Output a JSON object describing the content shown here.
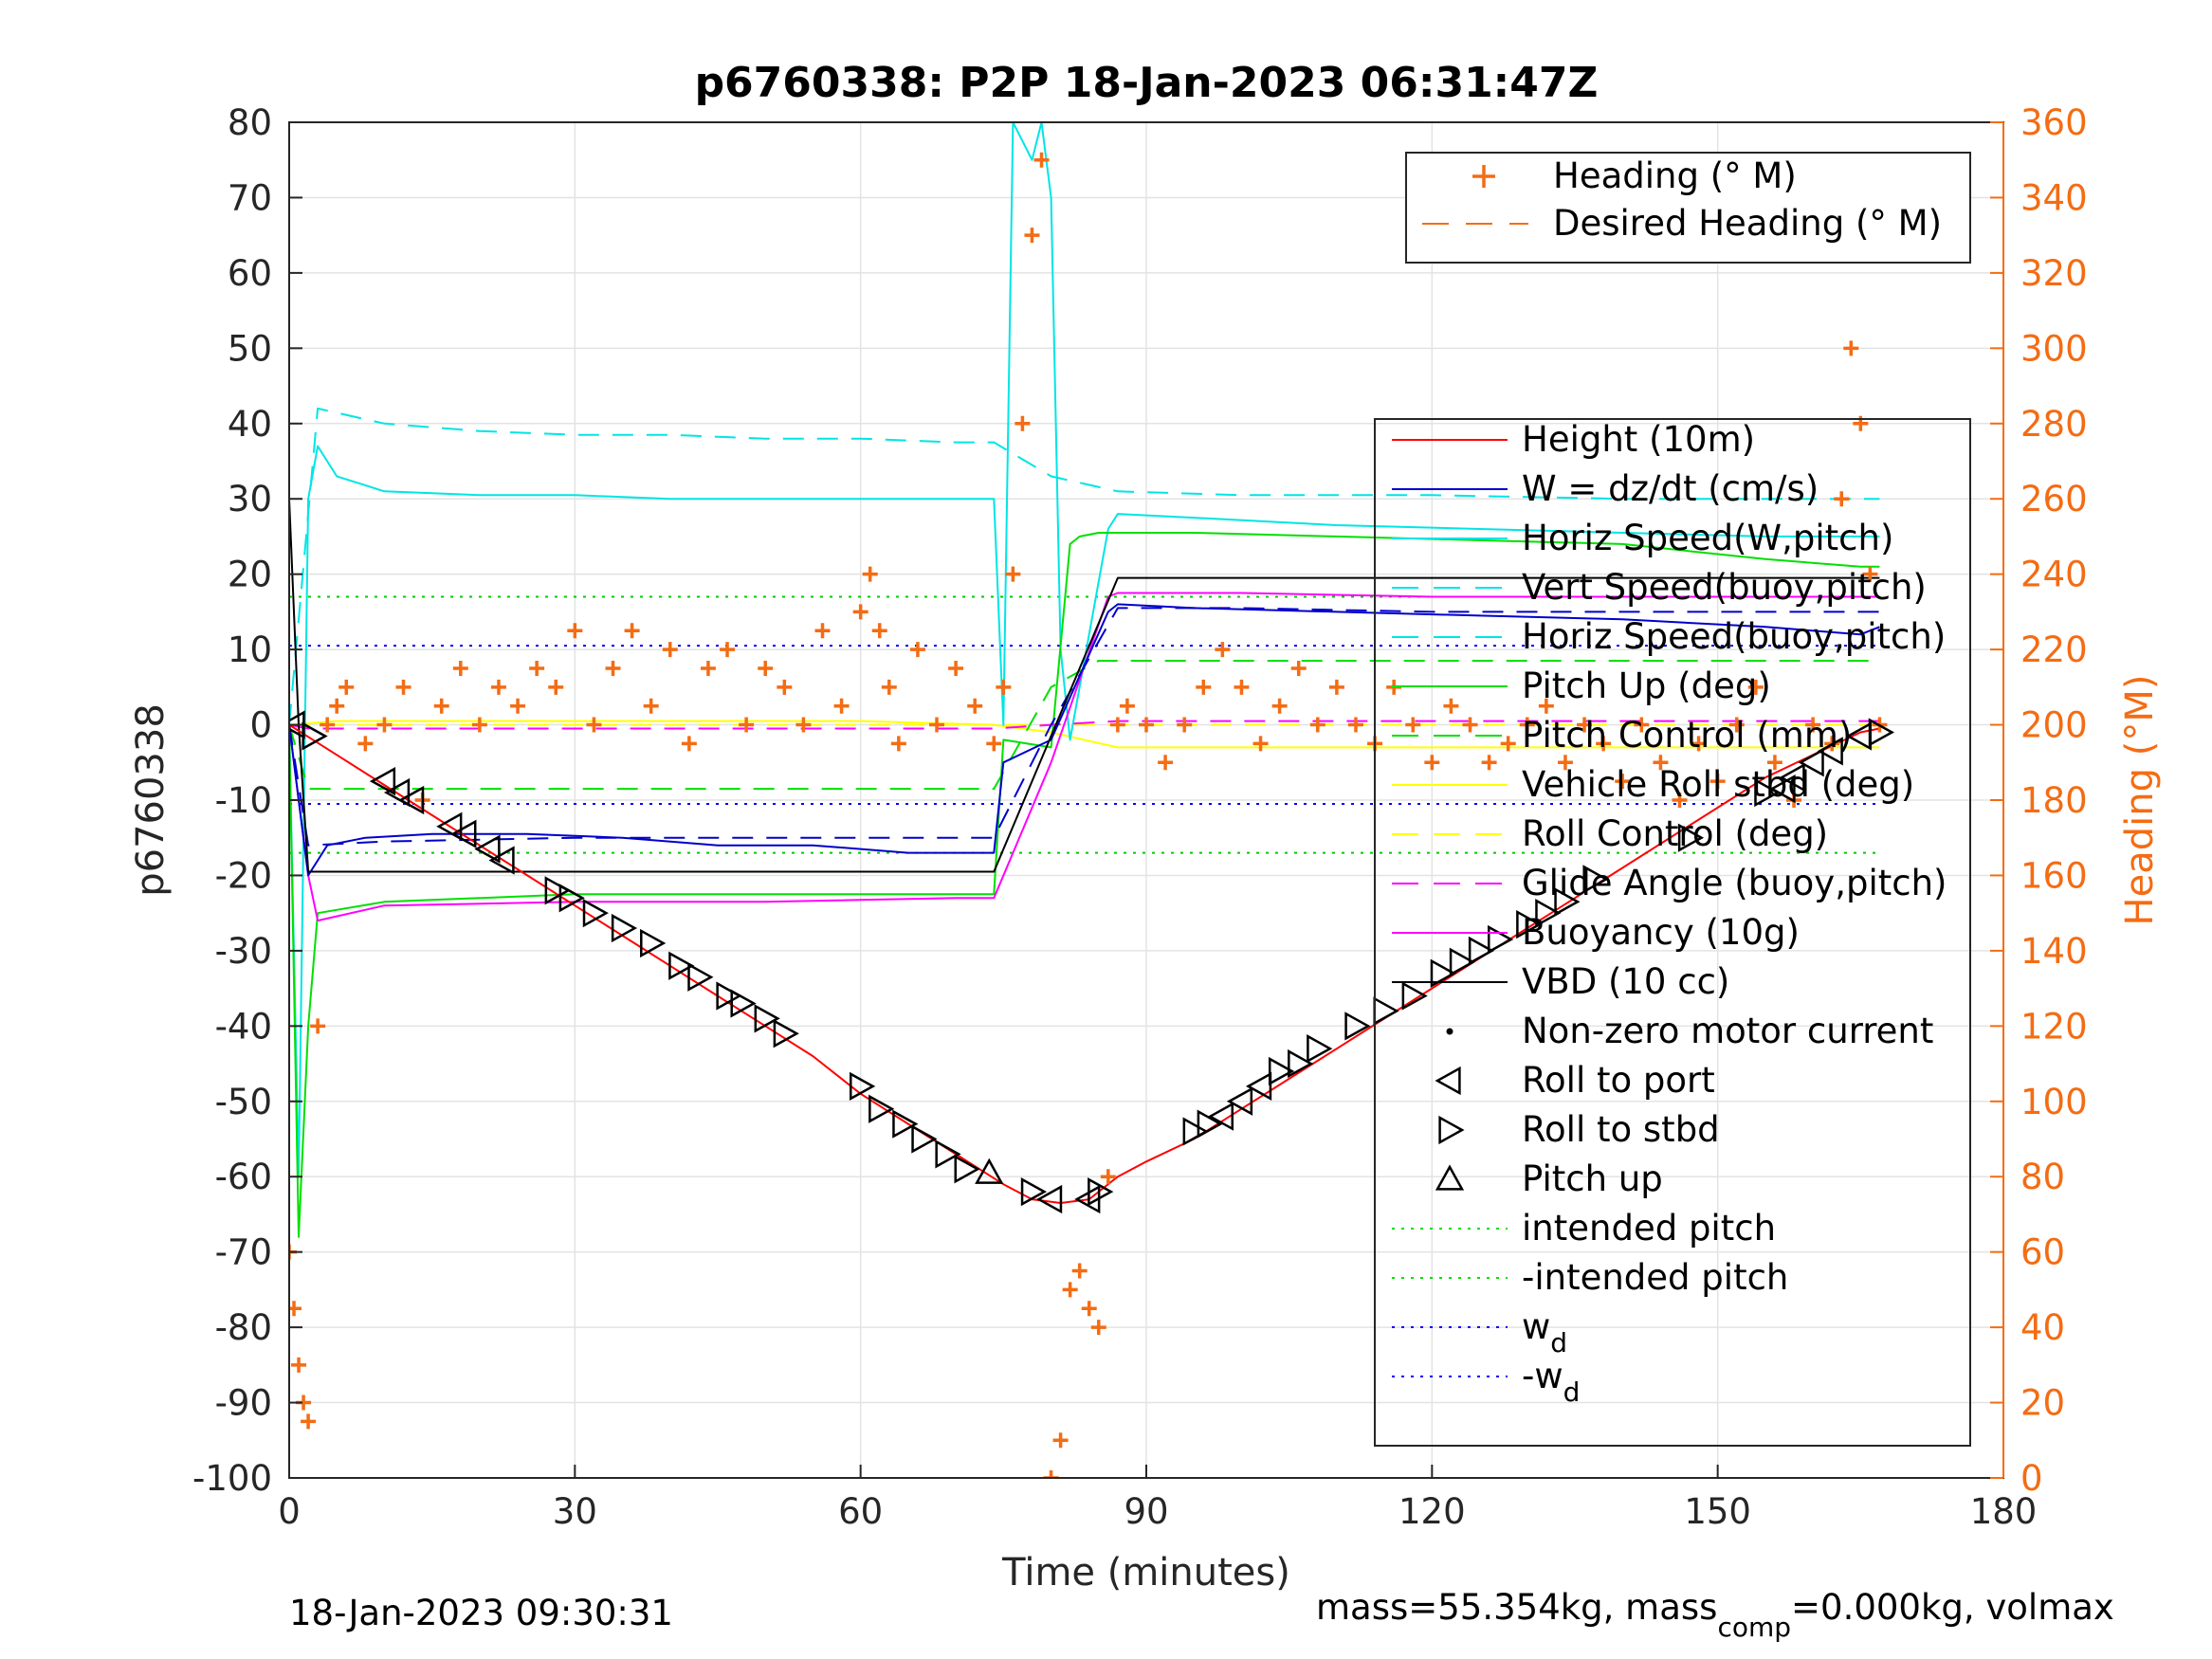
{
  "chart_data": {
    "type": "line",
    "title": "p6760338: P2P 18-Jan-2023 06:31:47Z",
    "xlabel": "Time (minutes)",
    "ylabel": "p6760338",
    "y2label": "Heading (°M)",
    "xlim": [
      0,
      180
    ],
    "ylim": [
      -100,
      80
    ],
    "y2lim": [
      0,
      360
    ],
    "xticks": [
      "0",
      "30",
      "60",
      "90",
      "120",
      "150",
      "180"
    ],
    "yticks": [
      "80",
      "70",
      "60",
      "50",
      "40",
      "30",
      "20",
      "10",
      "0",
      "-10",
      "-20",
      "-30",
      "-40",
      "-50",
      "-60",
      "-70",
      "-80",
      "-90",
      "-100"
    ],
    "y2ticks": [
      "360",
      "340",
      "320",
      "300",
      "280",
      "260",
      "240",
      "220",
      "200",
      "180",
      "160",
      "140",
      "120",
      "100",
      "80",
      "60",
      "40",
      "20",
      "0"
    ],
    "grid": true,
    "colors": {
      "heading": "#f46c13",
      "height": "#ff0000",
      "w": "#0000cc",
      "horiz": "#00e000",
      "vert": "#00e5e5",
      "roll": "#ffff00",
      "glide": "#ff00ff",
      "vbd": "#000000",
      "intended": "#00cc00",
      "wd": "#0000ff"
    },
    "heading_legend": [
      {
        "label": "Heading (° M)",
        "style": "plus"
      },
      {
        "label": "Desired Heading (° M)",
        "style": "dash"
      }
    ],
    "legend": [
      {
        "label": "Height (10m)",
        "color": "#ff0000",
        "style": "line"
      },
      {
        "label": "W = dz/dt (cm/s)",
        "color": "#0000cc",
        "style": "line"
      },
      {
        "label": "Horiz Speed(W,pitch)",
        "color": "#00e5e5",
        "style": "line"
      },
      {
        "label": "Vert Speed(buoy,pitch)",
        "color": "#00e5e5",
        "style": "dash"
      },
      {
        "label": "Horiz Speed(buoy,pitch)",
        "color": "#00e5e5",
        "style": "dash"
      },
      {
        "label": "Pitch Up (deg)",
        "color": "#00e000",
        "style": "line"
      },
      {
        "label": "Pitch Control (mm)",
        "color": "#00e000",
        "style": "dash"
      },
      {
        "label": "Vehicle Roll stbd (deg)",
        "color": "#ffff00",
        "style": "line"
      },
      {
        "label": "Roll Control (deg)",
        "color": "#ffff00",
        "style": "dash"
      },
      {
        "label": "Glide Angle (buoy,pitch)",
        "color": "#ff00ff",
        "style": "dash"
      },
      {
        "label": "Buoyancy (10g)",
        "color": "#ff00ff",
        "style": "line"
      },
      {
        "label": "VBD (10 cc)",
        "color": "#000000",
        "style": "line"
      },
      {
        "label": "Non-zero motor current",
        "color": "#000000",
        "style": "dot"
      },
      {
        "label": "Roll to port",
        "color": "#000000",
        "style": "tri-left"
      },
      {
        "label": "Roll to stbd",
        "color": "#000000",
        "style": "tri-right"
      },
      {
        "label": "Pitch up",
        "color": "#000000",
        "style": "tri-up"
      },
      {
        "label": "intended pitch",
        "color": "#00e000",
        "style": "dotted"
      },
      {
        "label": "-intended pitch",
        "color": "#00e000",
        "style": "dotted"
      },
      {
        "label": "w",
        "sub": "d",
        "color": "#0000ff",
        "style": "dotted"
      },
      {
        "label": "-w",
        "sub": "d",
        "color": "#0000ff",
        "style": "dotted"
      }
    ],
    "series": [
      {
        "name": "Height (10m)",
        "x": [
          0,
          5,
          10,
          15,
          20,
          25,
          30,
          35,
          40,
          45,
          50,
          55,
          60,
          65,
          70,
          75,
          78,
          81,
          84,
          87,
          90,
          95,
          100,
          105,
          110,
          115,
          120,
          125,
          130,
          135,
          140,
          145,
          150,
          155,
          160,
          165,
          167
        ],
        "y": [
          0,
          -4,
          -8,
          -12,
          -16,
          -20,
          -24,
          -28,
          -32,
          -36,
          -40,
          -44,
          -49,
          -53,
          -57,
          -61,
          -63,
          -63.5,
          -63,
          -60,
          -58,
          -55,
          -51,
          -47,
          -43,
          -39,
          -35,
          -31,
          -27,
          -23,
          -19,
          -15,
          -11,
          -7,
          -4,
          -1,
          -0.5
        ]
      },
      {
        "name": "W = dz/dt (cm/s)",
        "x": [
          0,
          1,
          2,
          4,
          8,
          15,
          25,
          35,
          45,
          55,
          65,
          74,
          75,
          80,
          86,
          87,
          95,
          110,
          125,
          140,
          155,
          165,
          167
        ],
        "y": [
          0,
          -10,
          -20,
          -16,
          -15,
          -14.5,
          -14.5,
          -15,
          -16,
          -16,
          -17,
          -17,
          -5,
          -2,
          15,
          16,
          15.5,
          15,
          14.5,
          14,
          13,
          12,
          13
        ]
      },
      {
        "name": "Horiz Speed(W,pitch)",
        "x": [
          0,
          1,
          2,
          3,
          5,
          10,
          20,
          30,
          40,
          50,
          60,
          70,
          74,
          75,
          76,
          78,
          79,
          80,
          81,
          82,
          86,
          87,
          95,
          110,
          125,
          140,
          155,
          165,
          167
        ],
        "y": [
          0,
          -60,
          30,
          37,
          33,
          31,
          30.5,
          30.5,
          30,
          30,
          30,
          30,
          30,
          0,
          80,
          75,
          80,
          70,
          10,
          -2,
          26,
          28,
          27.5,
          26.5,
          26,
          25.5,
          25,
          25,
          25
        ]
      },
      {
        "name": "Vert Speed(buoy,pitch)",
        "x": [
          0,
          3,
          10,
          20,
          30,
          40,
          50,
          60,
          70,
          74,
          80,
          87,
          100,
          120,
          140,
          160,
          167
        ],
        "y": [
          0,
          42,
          40,
          39,
          38.5,
          38.5,
          38,
          38,
          37.5,
          37.5,
          33,
          31,
          30.5,
          30.5,
          30,
          30,
          30
        ]
      },
      {
        "name": "Horiz Speed(buoy,pitch)",
        "x": [
          0,
          2,
          10,
          30,
          50,
          70,
          74,
          80,
          87,
          100,
          120,
          140,
          160,
          167
        ],
        "y": [
          0,
          -16,
          -15.5,
          -15,
          -15,
          -15,
          -15,
          0,
          15.5,
          15.5,
          15,
          15,
          15,
          15
        ]
      },
      {
        "name": "Pitch Up (deg)",
        "x": [
          0,
          1,
          2,
          3,
          10,
          20,
          30,
          40,
          50,
          60,
          70,
          74,
          75,
          80,
          82,
          83,
          85,
          87,
          95,
          110,
          125,
          140,
          155,
          165,
          167
        ],
        "y": [
          0,
          -68,
          -40,
          -25,
          -23.5,
          -23,
          -22.5,
          -22.5,
          -22.5,
          -22.5,
          -22.5,
          -22.5,
          -2,
          -3,
          24,
          25,
          25.5,
          25.5,
          25.5,
          25,
          24.5,
          24,
          22,
          21,
          21
        ]
      },
      {
        "name": "Pitch Control (mm)",
        "x": [
          0,
          2,
          10,
          30,
          50,
          70,
          74,
          80,
          85,
          87,
          100,
          120,
          140,
          160,
          167
        ],
        "y": [
          0,
          -8.5,
          -8.5,
          -8.5,
          -8.5,
          -8.5,
          -8.5,
          5,
          8.5,
          8.5,
          8.5,
          8.5,
          8.5,
          8.5,
          8.5
        ]
      },
      {
        "name": "Vehicle Roll stbd (deg)",
        "x": [
          0,
          5,
          15,
          30,
          45,
          60,
          74,
          80,
          87,
          100,
          115,
          130,
          145,
          160,
          167
        ],
        "y": [
          0,
          0.5,
          0.5,
          0.5,
          0.5,
          0.5,
          0,
          -1,
          -3,
          -3,
          -3,
          -3,
          -3,
          -3,
          -3
        ]
      },
      {
        "name": "Roll Control (deg)",
        "x": [
          0,
          167
        ],
        "y": [
          0,
          0
        ]
      },
      {
        "name": "Glide Angle (buoy,pitch)",
        "x": [
          0,
          2,
          10,
          30,
          50,
          70,
          74,
          80,
          87,
          100,
          120,
          140,
          160,
          167
        ],
        "y": [
          0,
          -0.5,
          -0.5,
          -0.5,
          -0.5,
          -0.5,
          -0.5,
          0,
          0.5,
          0.5,
          0.5,
          0.5,
          0.5,
          0.5
        ]
      },
      {
        "name": "Buoyancy (10g)",
        "x": [
          0,
          2,
          3,
          10,
          30,
          50,
          70,
          74,
          80,
          86,
          87,
          100,
          120,
          140,
          160,
          167
        ],
        "y": [
          0,
          -20,
          -26,
          -24,
          -23.5,
          -23.5,
          -23,
          -23,
          -5,
          17,
          17.5,
          17.5,
          17,
          17,
          17,
          17
        ]
      },
      {
        "name": "VBD (10 cc)",
        "x": [
          0,
          1,
          2,
          74,
          87,
          167
        ],
        "y": [
          30,
          0,
          -19.5,
          -19.5,
          19.5,
          19.5
        ]
      },
      {
        "name": "intended pitch",
        "x": [
          0,
          167
        ],
        "y": [
          17,
          17
        ]
      },
      {
        "name": "-intended pitch",
        "x": [
          0,
          167
        ],
        "y": [
          -17,
          -17
        ]
      },
      {
        "name": "w",
        "x": [
          0,
          167
        ],
        "y": [
          10.5,
          10.5
        ]
      },
      {
        "name": "-w",
        "x": [
          0,
          167
        ],
        "y": [
          -10.5,
          -10.5
        ]
      },
      {
        "name": "Heading (° M)",
        "axis": "right",
        "x": [
          0,
          0.5,
          1,
          1.5,
          2,
          3,
          4,
          5,
          6,
          8,
          10,
          12,
          14,
          16,
          18,
          20,
          22,
          24,
          26,
          28,
          30,
          32,
          34,
          36,
          38,
          40,
          42,
          44,
          46,
          48,
          50,
          52,
          54,
          56,
          58,
          60,
          61,
          62,
          63,
          64,
          66,
          68,
          70,
          72,
          74,
          75,
          76,
          77,
          78,
          79,
          80,
          81,
          82,
          83,
          84,
          85,
          86,
          87,
          88,
          90,
          92,
          94,
          96,
          98,
          100,
          102,
          104,
          106,
          108,
          110,
          112,
          114,
          116,
          118,
          120,
          122,
          124,
          126,
          128,
          130,
          132,
          134,
          136,
          138,
          140,
          142,
          144,
          146,
          148,
          150,
          152,
          154,
          156,
          158,
          160,
          162,
          163,
          164,
          165,
          166,
          167
        ],
        "y": [
          60,
          45,
          30,
          20,
          15,
          120,
          200,
          205,
          210,
          195,
          200,
          210,
          180,
          205,
          215,
          200,
          210,
          205,
          215,
          210,
          225,
          200,
          215,
          225,
          205,
          220,
          195,
          215,
          220,
          200,
          215,
          210,
          200,
          225,
          205,
          230,
          240,
          225,
          210,
          195,
          220,
          200,
          215,
          205,
          195,
          210,
          240,
          280,
          330,
          350,
          0,
          10,
          50,
          55,
          45,
          40,
          80,
          200,
          205,
          200,
          190,
          200,
          210,
          220,
          210,
          195,
          205,
          215,
          200,
          210,
          200,
          195,
          210,
          200,
          190,
          205,
          200,
          190,
          195,
          200,
          205,
          190,
          200,
          195,
          185,
          200,
          190,
          180,
          195,
          185,
          200,
          210,
          190,
          180,
          200,
          195,
          260,
          300,
          280,
          240,
          200
        ]
      }
    ],
    "markers": {
      "roll_to_port": {
        "x": [
          0.5,
          10,
          11.5,
          13,
          17,
          18.5,
          21,
          22.5,
          80,
          84,
          98,
          100,
          102,
          157,
          158,
          160,
          162,
          165
        ],
        "y": [
          0,
          -7.5,
          -9,
          -10,
          -13.5,
          -14.5,
          -16.5,
          -18,
          -63,
          -63,
          -52,
          -50,
          -48,
          -8.5,
          -7,
          -5,
          -3.5,
          -1.5
        ]
      },
      "roll_to_stbd": {
        "x": [
          2.5,
          28,
          29.5,
          32,
          35,
          38,
          41,
          43,
          46,
          47.5,
          50,
          52,
          60,
          62,
          64.5,
          66.5,
          69,
          71,
          78,
          85,
          95,
          96.5,
          104,
          106,
          108,
          112,
          115,
          118,
          121,
          123,
          125,
          127,
          130,
          132,
          134,
          137,
          147,
          155,
          167
        ],
        "y": [
          -1.5,
          -22,
          -23,
          -25,
          -27,
          -29,
          -32,
          -33.5,
          -36,
          -37,
          -39,
          -41,
          -48,
          -51,
          -53,
          -55,
          -57,
          -59,
          -62,
          -62,
          -54,
          -53,
          -46,
          -45,
          -43,
          -40,
          -38,
          -36,
          -33,
          -31.5,
          -30,
          -28.5,
          -26.5,
          -25,
          -23.5,
          -20.5,
          -15,
          -9,
          -1
        ]
      },
      "pitch_up": {
        "x": [
          73.5
        ],
        "y": [
          -59.5
        ]
      }
    }
  },
  "footer": {
    "timestamp": "18-Jan-2023 09:30:31",
    "mass_prefix": "mass=55.354kg, mass",
    "mass_sub": "comp",
    "mass_suffix": "=0.000kg, volmax"
  }
}
